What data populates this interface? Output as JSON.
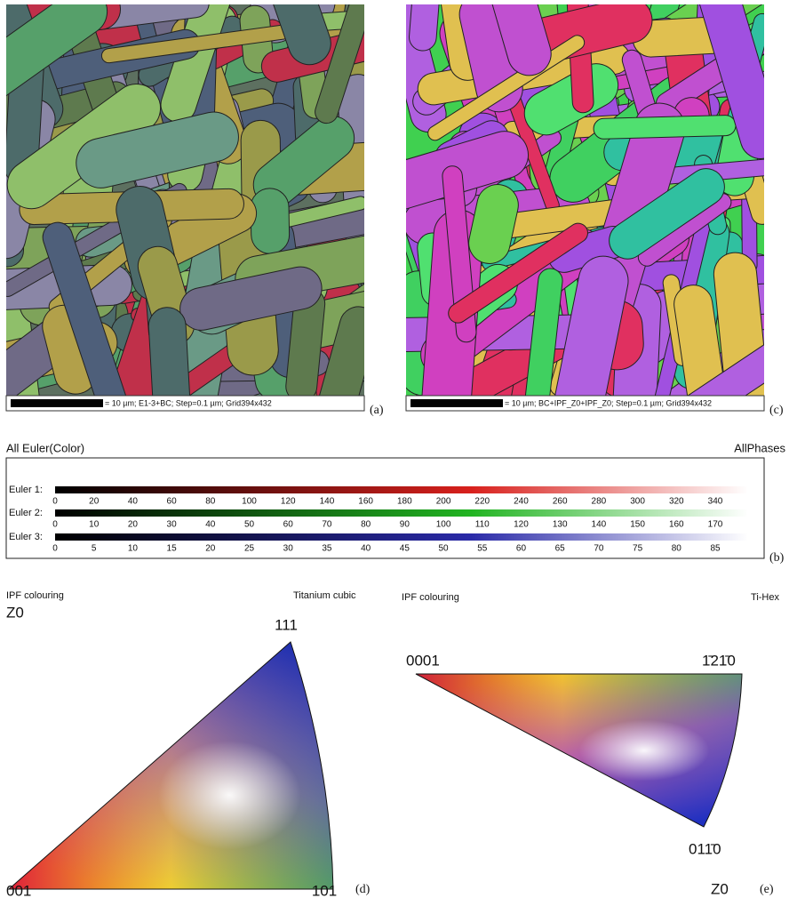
{
  "panels": {
    "a": {
      "caption": "= 10 µm; E1-3+BC; Step=0.1 µm; Grid394x432",
      "label": "(a)"
    },
    "c": {
      "caption": "= 10 µm; BC+IPF_Z0+IPF_Z0; Step=0.1 µm; Grid394x432",
      "label": "(c)"
    },
    "b": {
      "title": "All Euler(Color)",
      "phase": "AllPhases",
      "label": "(b)",
      "rows": [
        {
          "name": "Euler 1:",
          "ticks": [
            0,
            20,
            40,
            60,
            80,
            100,
            120,
            140,
            160,
            180,
            200,
            220,
            240,
            260,
            280,
            300,
            320,
            340
          ]
        },
        {
          "name": "Euler 2:",
          "ticks": [
            0,
            10,
            20,
            30,
            40,
            50,
            60,
            70,
            80,
            90,
            100,
            110,
            120,
            130,
            140,
            150,
            160,
            170
          ]
        },
        {
          "name": "Euler 3:",
          "ticks": [
            0,
            5,
            10,
            15,
            20,
            25,
            30,
            35,
            40,
            45,
            50,
            55,
            60,
            65,
            70,
            75,
            80,
            85
          ]
        }
      ]
    },
    "d": {
      "title": "IPF colouring",
      "phase": "Titanium cubic",
      "axis": "Z0",
      "top": "111",
      "left": "001",
      "right": "101",
      "label": "(d)"
    },
    "e": {
      "title": "IPF colouring",
      "phase": "Ti-Hex",
      "left": "0001",
      "right": "1̄21̄0",
      "bottom": "011̄0",
      "axis": "Z0",
      "label": "(e)"
    }
  }
}
